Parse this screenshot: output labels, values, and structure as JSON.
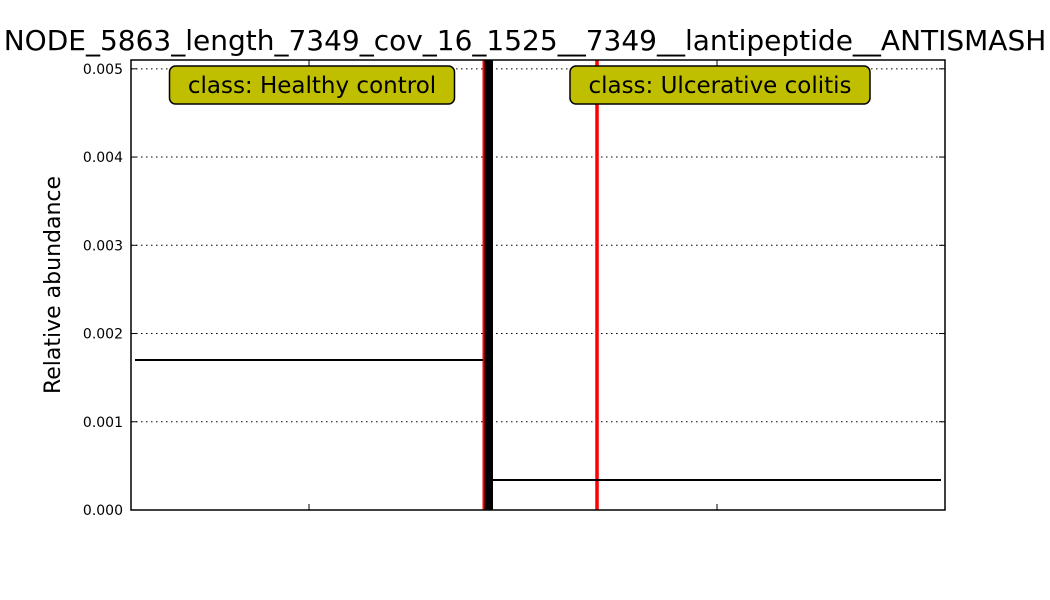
{
  "chart_data": {
    "type": "line",
    "title": "NODE_5863_length_7349_cov_16_1525__7349__lantipeptide__ANTISMASH",
    "ylabel": "Relative abundance",
    "xlabel": "",
    "ylim": [
      0,
      0.0051
    ],
    "yticks": [
      0.0,
      0.001,
      0.002,
      0.003,
      0.004,
      0.005
    ],
    "ytick_labels": [
      "0.000",
      "0.001",
      "0.002",
      "0.003",
      "0.004",
      "0.005"
    ],
    "grid": "horizontal-dotted",
    "classes": [
      {
        "label": "class: Healthy control",
        "mean": 0.0017,
        "sample_values": [
          0,
          0
        ]
      },
      {
        "label": "class: Ulcerative colitis",
        "mean": 0.00034,
        "sample_values": [
          0
        ]
      }
    ],
    "colors": {
      "sample_line": "#ff0000",
      "separator": "#000000",
      "mean_line": "#000000",
      "label_box": "#bfbf00"
    }
  }
}
